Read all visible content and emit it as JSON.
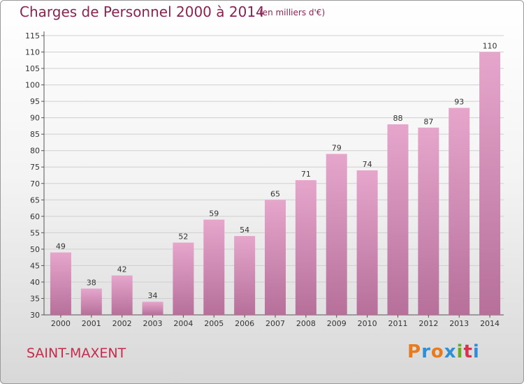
{
  "header": {
    "title": "Charges de Personnel 2000 à 2014",
    "subtitle": "(en milliers d'€)"
  },
  "footer": {
    "commune": "SAINT-MAXENT",
    "brand": "Proxiti"
  },
  "colors": {
    "title": "#8a2252",
    "commune": "#c42c4c",
    "bar_top": "#e6a6cc",
    "bar_bottom": "#b6709a",
    "grid": "#cfcfcf",
    "logo": [
      "#e77b1d",
      "#2f8fd6",
      "#e77b1d",
      "#2f8fd6",
      "#6aaa2a",
      "#d9324f",
      "#2f8fd6"
    ]
  },
  "chart_data": {
    "type": "bar",
    "title": "Charges de Personnel 2000 à 2014",
    "subtitle": "(en milliers d'€)",
    "categories": [
      "2000",
      "2001",
      "2002",
      "2003",
      "2004",
      "2005",
      "2006",
      "2007",
      "2008",
      "2009",
      "2010",
      "2011",
      "2012",
      "2013",
      "2014"
    ],
    "values": [
      49,
      38,
      42,
      34,
      52,
      59,
      54,
      65,
      71,
      79,
      74,
      88,
      87,
      93,
      110
    ],
    "ylim": [
      30,
      115
    ],
    "yticks": [
      30,
      35,
      40,
      45,
      50,
      55,
      60,
      65,
      70,
      75,
      80,
      85,
      90,
      95,
      100,
      105,
      110,
      115
    ],
    "grid": true,
    "data_labels": true,
    "xlabel": "",
    "ylabel": ""
  }
}
